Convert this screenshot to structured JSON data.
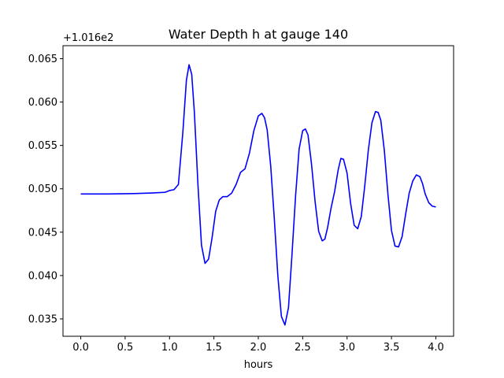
{
  "chart_data": {
    "type": "line",
    "title": "Water Depth h at gauge 140",
    "xlabel": "hours",
    "ylabel": "",
    "offset_label": "+1.016e2",
    "xlim": [
      -0.2,
      4.2
    ],
    "ylim": [
      0.033,
      0.0665
    ],
    "xticks": [
      0.0,
      0.5,
      1.0,
      1.5,
      2.0,
      2.5,
      3.0,
      3.5,
      4.0
    ],
    "xtick_labels": [
      "0.0",
      "0.5",
      "1.0",
      "1.5",
      "2.0",
      "2.5",
      "3.0",
      "3.5",
      "4.0"
    ],
    "yticks": [
      0.035,
      0.04,
      0.045,
      0.05,
      0.055,
      0.06,
      0.065
    ],
    "ytick_labels": [
      "0.035",
      "0.040",
      "0.045",
      "0.050",
      "0.055",
      "0.060",
      "0.065"
    ],
    "grid": false,
    "series": [
      {
        "color": "#0000ff",
        "x": [
          0.0,
          0.3,
          0.6,
          0.8,
          0.95,
          1.0,
          1.05,
          1.1,
          1.15,
          1.19,
          1.22,
          1.25,
          1.28,
          1.32,
          1.36,
          1.4,
          1.44,
          1.48,
          1.52,
          1.56,
          1.6,
          1.65,
          1.7,
          1.75,
          1.8,
          1.85,
          1.9,
          1.95,
          2.0,
          2.04,
          2.07,
          2.1,
          2.14,
          2.18,
          2.22,
          2.26,
          2.3,
          2.34,
          2.38,
          2.42,
          2.46,
          2.5,
          2.53,
          2.56,
          2.6,
          2.64,
          2.68,
          2.72,
          2.75,
          2.78,
          2.82,
          2.86,
          2.9,
          2.93,
          2.96,
          3.0,
          3.04,
          3.08,
          3.12,
          3.16,
          3.2,
          3.24,
          3.28,
          3.32,
          3.35,
          3.38,
          3.42,
          3.46,
          3.5,
          3.54,
          3.58,
          3.62,
          3.66,
          3.7,
          3.74,
          3.78,
          3.82,
          3.85,
          3.88,
          3.92,
          3.96,
          4.0
        ],
        "y": [
          0.0494,
          0.0494,
          0.04945,
          0.04952,
          0.0496,
          0.0498,
          0.0499,
          0.0505,
          0.0565,
          0.0625,
          0.0643,
          0.0632,
          0.0588,
          0.0505,
          0.0435,
          0.0414,
          0.0419,
          0.0444,
          0.0474,
          0.0487,
          0.0491,
          0.0491,
          0.0495,
          0.0505,
          0.0519,
          0.0523,
          0.0541,
          0.0567,
          0.0584,
          0.0587,
          0.0582,
          0.0568,
          0.0526,
          0.0466,
          0.04,
          0.0353,
          0.0343,
          0.0363,
          0.0425,
          0.0492,
          0.0546,
          0.0567,
          0.0569,
          0.0562,
          0.0528,
          0.0485,
          0.0451,
          0.044,
          0.0442,
          0.0455,
          0.0478,
          0.0497,
          0.0522,
          0.0535,
          0.0534,
          0.0518,
          0.0483,
          0.0458,
          0.0454,
          0.0468,
          0.0504,
          0.0545,
          0.0576,
          0.0589,
          0.0588,
          0.0579,
          0.0544,
          0.0494,
          0.0452,
          0.0434,
          0.0433,
          0.0445,
          0.0471,
          0.0495,
          0.0509,
          0.0516,
          0.0514,
          0.0506,
          0.0494,
          0.0484,
          0.048,
          0.0479
        ]
      }
    ]
  }
}
